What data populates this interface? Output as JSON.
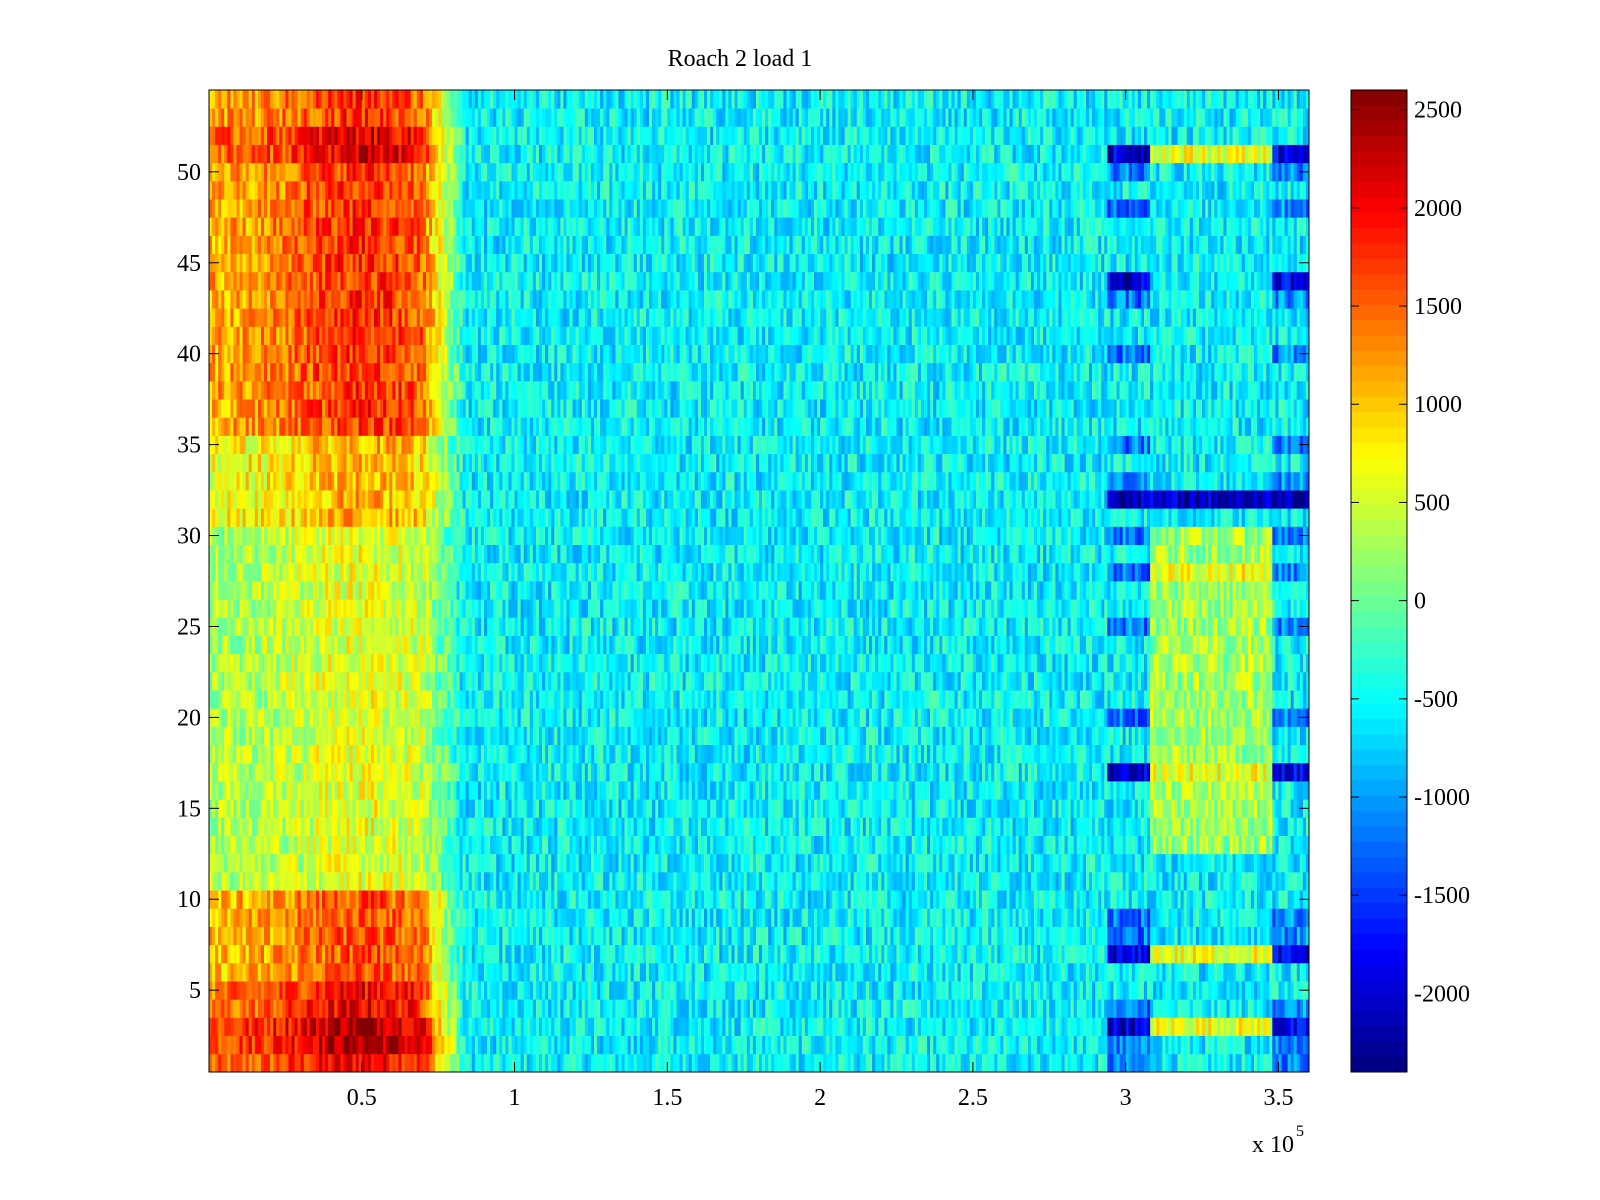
{
  "chart_data": {
    "type": "heatmap",
    "title": "Roach 2 load 1",
    "xlabel": "",
    "ylabel": "",
    "x_multiplier": {
      "base": "x 10",
      "exponent": "5"
    },
    "xlim": [
      0,
      3.6
    ],
    "ylim": [
      0.5,
      54.5
    ],
    "x_ticks": [
      0.5,
      1,
      1.5,
      2,
      2.5,
      3,
      3.5
    ],
    "x_tick_labels": [
      "0.5",
      "1",
      "1.5",
      "2",
      "2.5",
      "3",
      "3.5"
    ],
    "y_ticks": [
      5,
      10,
      15,
      20,
      25,
      30,
      35,
      40,
      45,
      50
    ],
    "y_tick_labels": [
      "5",
      "10",
      "15",
      "20",
      "25",
      "30",
      "35",
      "40",
      "45",
      "50"
    ],
    "rows": 54,
    "colorbar": {
      "colormap": "jet",
      "clim": [
        -2400,
        2600
      ],
      "ticks": [
        -2000,
        -1500,
        -1000,
        -500,
        0,
        500,
        1000,
        1500,
        2000,
        2500
      ],
      "tick_labels": [
        "-2000",
        "-1500",
        "-1000",
        "-500",
        "0",
        "500",
        "1000",
        "1500",
        "2000",
        "2500"
      ],
      "placement": "right"
    },
    "grid": false
  }
}
